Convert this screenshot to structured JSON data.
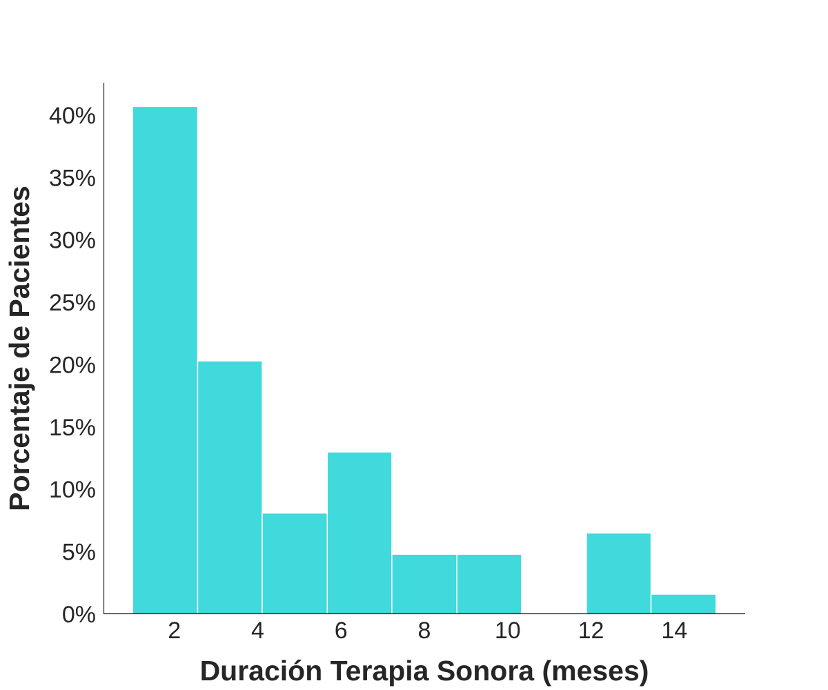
{
  "chart_data": {
    "type": "bar",
    "subtype": "histogram",
    "xlabel": "Duración Terapia Sonora (meses)",
    "ylabel": "Porcentaje de Pacientes",
    "bar_color": "#40D9DC",
    "axis_color": "#262626",
    "x_ticks": [
      "2",
      "4",
      "6",
      "8",
      "10",
      "12",
      "14"
    ],
    "x_tick_values": [
      2,
      4,
      6,
      8,
      10,
      12,
      14
    ],
    "y_ticks": [
      "0%",
      "5%",
      "10%",
      "15%",
      "20%",
      "25%",
      "30%",
      "35%",
      "40%"
    ],
    "y_tick_values": [
      0,
      5,
      10,
      15,
      20,
      25,
      30,
      35,
      40
    ],
    "xlim": [
      0.3,
      15.7
    ],
    "ylim": [
      0,
      42.6
    ],
    "bins": [
      {
        "x0": 1.0,
        "x1": 2.56,
        "value": 40.7
      },
      {
        "x0": 2.56,
        "x1": 4.11,
        "value": 20.3
      },
      {
        "x0": 4.11,
        "x1": 5.67,
        "value": 8.1
      },
      {
        "x0": 5.67,
        "x1": 7.22,
        "value": 13.0
      },
      {
        "x0": 7.22,
        "x1": 8.78,
        "value": 4.8
      },
      {
        "x0": 8.78,
        "x1": 10.33,
        "value": 4.8
      },
      {
        "x0": 10.33,
        "x1": 11.89,
        "value": 0
      },
      {
        "x0": 11.89,
        "x1": 13.44,
        "value": 6.5
      },
      {
        "x0": 13.44,
        "x1": 15.0,
        "value": 1.6
      }
    ]
  }
}
